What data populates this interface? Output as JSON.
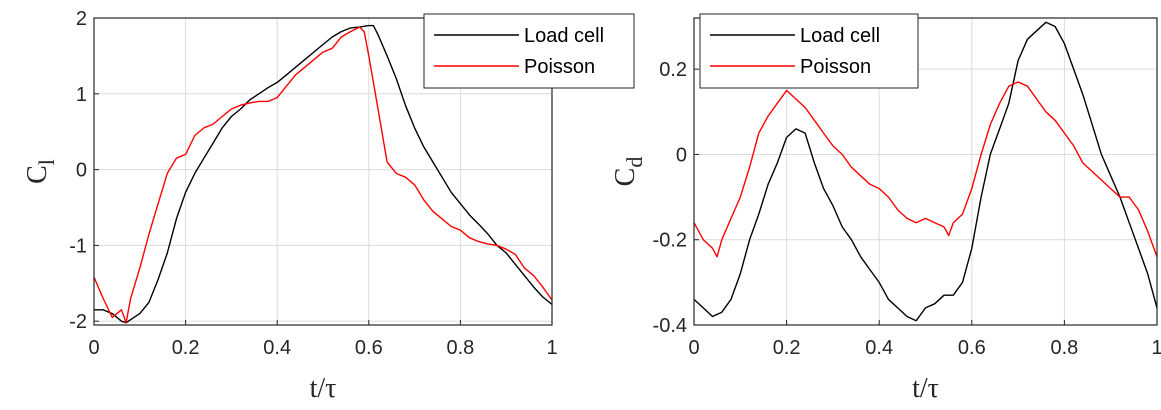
{
  "chart_data": [
    {
      "type": "line",
      "xlabel": "t/τ",
      "ylabel": "C",
      "ylabel_sub": "l",
      "xlim": [
        0,
        1
      ],
      "ylim": [
        -2.05,
        2.0
      ],
      "xticks": [
        0,
        0.2,
        0.4,
        0.6,
        0.8,
        1
      ],
      "xtick_labels": [
        "0",
        "0.2",
        "0.4",
        "0.6",
        "0.8",
        "1"
      ],
      "yticks": [
        -2,
        -1,
        0,
        1,
        2
      ],
      "ytick_labels": [
        "-2",
        "-1",
        "0",
        "1",
        "2"
      ],
      "grid": true,
      "legend": "top-right",
      "series": [
        {
          "name": "Load cell",
          "color": "#000000",
          "x": [
            0,
            0.02,
            0.04,
            0.05,
            0.06,
            0.07,
            0.08,
            0.1,
            0.12,
            0.14,
            0.16,
            0.18,
            0.2,
            0.22,
            0.24,
            0.26,
            0.28,
            0.3,
            0.32,
            0.34,
            0.36,
            0.38,
            0.4,
            0.42,
            0.44,
            0.46,
            0.48,
            0.5,
            0.52,
            0.54,
            0.56,
            0.58,
            0.6,
            0.61,
            0.62,
            0.64,
            0.66,
            0.68,
            0.7,
            0.72,
            0.74,
            0.76,
            0.78,
            0.8,
            0.82,
            0.84,
            0.86,
            0.88,
            0.9,
            0.92,
            0.94,
            0.96,
            0.98,
            1.0
          ],
          "y": [
            -1.85,
            -1.85,
            -1.9,
            -1.95,
            -2.0,
            -2.02,
            -1.98,
            -1.9,
            -1.75,
            -1.45,
            -1.1,
            -0.65,
            -0.3,
            -0.05,
            0.15,
            0.35,
            0.55,
            0.7,
            0.8,
            0.92,
            1.0,
            1.08,
            1.15,
            1.25,
            1.35,
            1.45,
            1.55,
            1.65,
            1.75,
            1.82,
            1.87,
            1.88,
            1.9,
            1.9,
            1.78,
            1.5,
            1.2,
            0.85,
            0.55,
            0.3,
            0.1,
            -0.1,
            -0.3,
            -0.45,
            -0.6,
            -0.72,
            -0.85,
            -1.0,
            -1.1,
            -1.25,
            -1.4,
            -1.55,
            -1.68,
            -1.78
          ]
        },
        {
          "name": "Poisson",
          "color": "#ff0000",
          "x": [
            0,
            0.02,
            0.04,
            0.06,
            0.07,
            0.08,
            0.1,
            0.12,
            0.14,
            0.16,
            0.18,
            0.2,
            0.22,
            0.24,
            0.26,
            0.28,
            0.3,
            0.32,
            0.34,
            0.36,
            0.38,
            0.4,
            0.42,
            0.44,
            0.46,
            0.48,
            0.5,
            0.52,
            0.54,
            0.56,
            0.58,
            0.59,
            0.6,
            0.62,
            0.64,
            0.66,
            0.68,
            0.7,
            0.72,
            0.74,
            0.76,
            0.78,
            0.8,
            0.82,
            0.84,
            0.86,
            0.88,
            0.9,
            0.92,
            0.94,
            0.96,
            0.98,
            1.0
          ],
          "y": [
            -1.42,
            -1.7,
            -1.95,
            -1.85,
            -2.02,
            -1.7,
            -1.3,
            -0.85,
            -0.45,
            -0.05,
            0.15,
            0.2,
            0.45,
            0.55,
            0.6,
            0.7,
            0.8,
            0.85,
            0.88,
            0.9,
            0.9,
            0.95,
            1.1,
            1.25,
            1.35,
            1.45,
            1.55,
            1.6,
            1.75,
            1.82,
            1.88,
            1.82,
            1.5,
            0.8,
            0.1,
            -0.05,
            -0.1,
            -0.2,
            -0.4,
            -0.55,
            -0.65,
            -0.75,
            -0.8,
            -0.9,
            -0.95,
            -0.98,
            -1.0,
            -1.05,
            -1.12,
            -1.3,
            -1.4,
            -1.55,
            -1.72
          ]
        }
      ]
    },
    {
      "type": "line",
      "xlabel": "t/τ",
      "ylabel": "C",
      "ylabel_sub": "d",
      "xlim": [
        0,
        1
      ],
      "ylim": [
        -0.4,
        0.32
      ],
      "xticks": [
        0,
        0.2,
        0.4,
        0.6,
        0.8,
        1
      ],
      "xtick_labels": [
        "0",
        "0.2",
        "0.4",
        "0.6",
        "0.8",
        "1"
      ],
      "yticks": [
        -0.4,
        -0.2,
        0,
        0.2
      ],
      "ytick_labels": [
        "-0.4",
        "-0.2",
        "0",
        "0.2"
      ],
      "grid": true,
      "legend": "top-left",
      "series": [
        {
          "name": "Load cell",
          "color": "#000000",
          "x": [
            0,
            0.02,
            0.04,
            0.06,
            0.08,
            0.1,
            0.12,
            0.14,
            0.16,
            0.18,
            0.2,
            0.22,
            0.24,
            0.26,
            0.28,
            0.3,
            0.32,
            0.34,
            0.36,
            0.38,
            0.4,
            0.42,
            0.44,
            0.46,
            0.48,
            0.5,
            0.52,
            0.54,
            0.56,
            0.58,
            0.6,
            0.62,
            0.64,
            0.66,
            0.68,
            0.7,
            0.72,
            0.74,
            0.76,
            0.78,
            0.8,
            0.82,
            0.84,
            0.86,
            0.88,
            0.9,
            0.92,
            0.94,
            0.96,
            0.98,
            1.0
          ],
          "y": [
            -0.34,
            -0.36,
            -0.38,
            -0.37,
            -0.34,
            -0.28,
            -0.2,
            -0.14,
            -0.07,
            -0.02,
            0.04,
            0.06,
            0.05,
            -0.02,
            -0.08,
            -0.12,
            -0.17,
            -0.2,
            -0.24,
            -0.27,
            -0.3,
            -0.34,
            -0.36,
            -0.38,
            -0.39,
            -0.36,
            -0.35,
            -0.33,
            -0.33,
            -0.3,
            -0.22,
            -0.1,
            0.0,
            0.06,
            0.12,
            0.22,
            0.27,
            0.29,
            0.31,
            0.3,
            0.26,
            0.2,
            0.14,
            0.07,
            0.0,
            -0.05,
            -0.1,
            -0.16,
            -0.22,
            -0.28,
            -0.36
          ]
        },
        {
          "name": "Poisson",
          "color": "#ff0000",
          "x": [
            0,
            0.02,
            0.04,
            0.05,
            0.06,
            0.08,
            0.1,
            0.12,
            0.14,
            0.16,
            0.18,
            0.2,
            0.22,
            0.24,
            0.26,
            0.28,
            0.3,
            0.32,
            0.34,
            0.36,
            0.38,
            0.4,
            0.42,
            0.44,
            0.46,
            0.48,
            0.5,
            0.52,
            0.54,
            0.55,
            0.56,
            0.58,
            0.6,
            0.62,
            0.64,
            0.66,
            0.68,
            0.7,
            0.72,
            0.74,
            0.76,
            0.78,
            0.8,
            0.82,
            0.84,
            0.86,
            0.88,
            0.9,
            0.92,
            0.94,
            0.96,
            0.98,
            1.0
          ],
          "y": [
            -0.16,
            -0.2,
            -0.22,
            -0.24,
            -0.2,
            -0.15,
            -0.1,
            -0.03,
            0.05,
            0.09,
            0.12,
            0.15,
            0.13,
            0.11,
            0.08,
            0.05,
            0.02,
            0.0,
            -0.03,
            -0.05,
            -0.07,
            -0.08,
            -0.1,
            -0.13,
            -0.15,
            -0.16,
            -0.15,
            -0.16,
            -0.17,
            -0.19,
            -0.16,
            -0.14,
            -0.08,
            0.0,
            0.07,
            0.12,
            0.16,
            0.17,
            0.16,
            0.13,
            0.1,
            0.08,
            0.05,
            0.02,
            -0.02,
            -0.04,
            -0.06,
            -0.08,
            -0.1,
            -0.1,
            -0.13,
            -0.18,
            -0.24
          ]
        }
      ]
    }
  ]
}
